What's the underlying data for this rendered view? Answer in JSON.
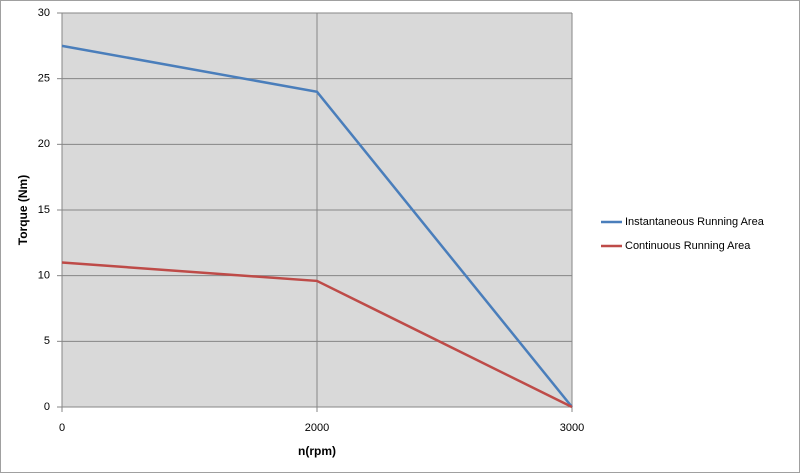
{
  "chart_data": {
    "type": "line",
    "x_label": "n(rpm)",
    "y_label": "Torque (Nm)",
    "categories": [
      "0",
      "2000",
      "3000"
    ],
    "series": [
      {
        "name": "Instantaneous Running Area",
        "color": "#4a7ebb",
        "values": [
          27.5,
          24,
          0
        ]
      },
      {
        "name": "Continuous Running Area",
        "color": "#be4b48",
        "values": [
          11,
          9.6,
          0
        ]
      }
    ],
    "ylim": [
      0,
      30
    ],
    "yticks": [
      0,
      5,
      10,
      15,
      20,
      25,
      30
    ],
    "grid": true,
    "legend": "right"
  }
}
